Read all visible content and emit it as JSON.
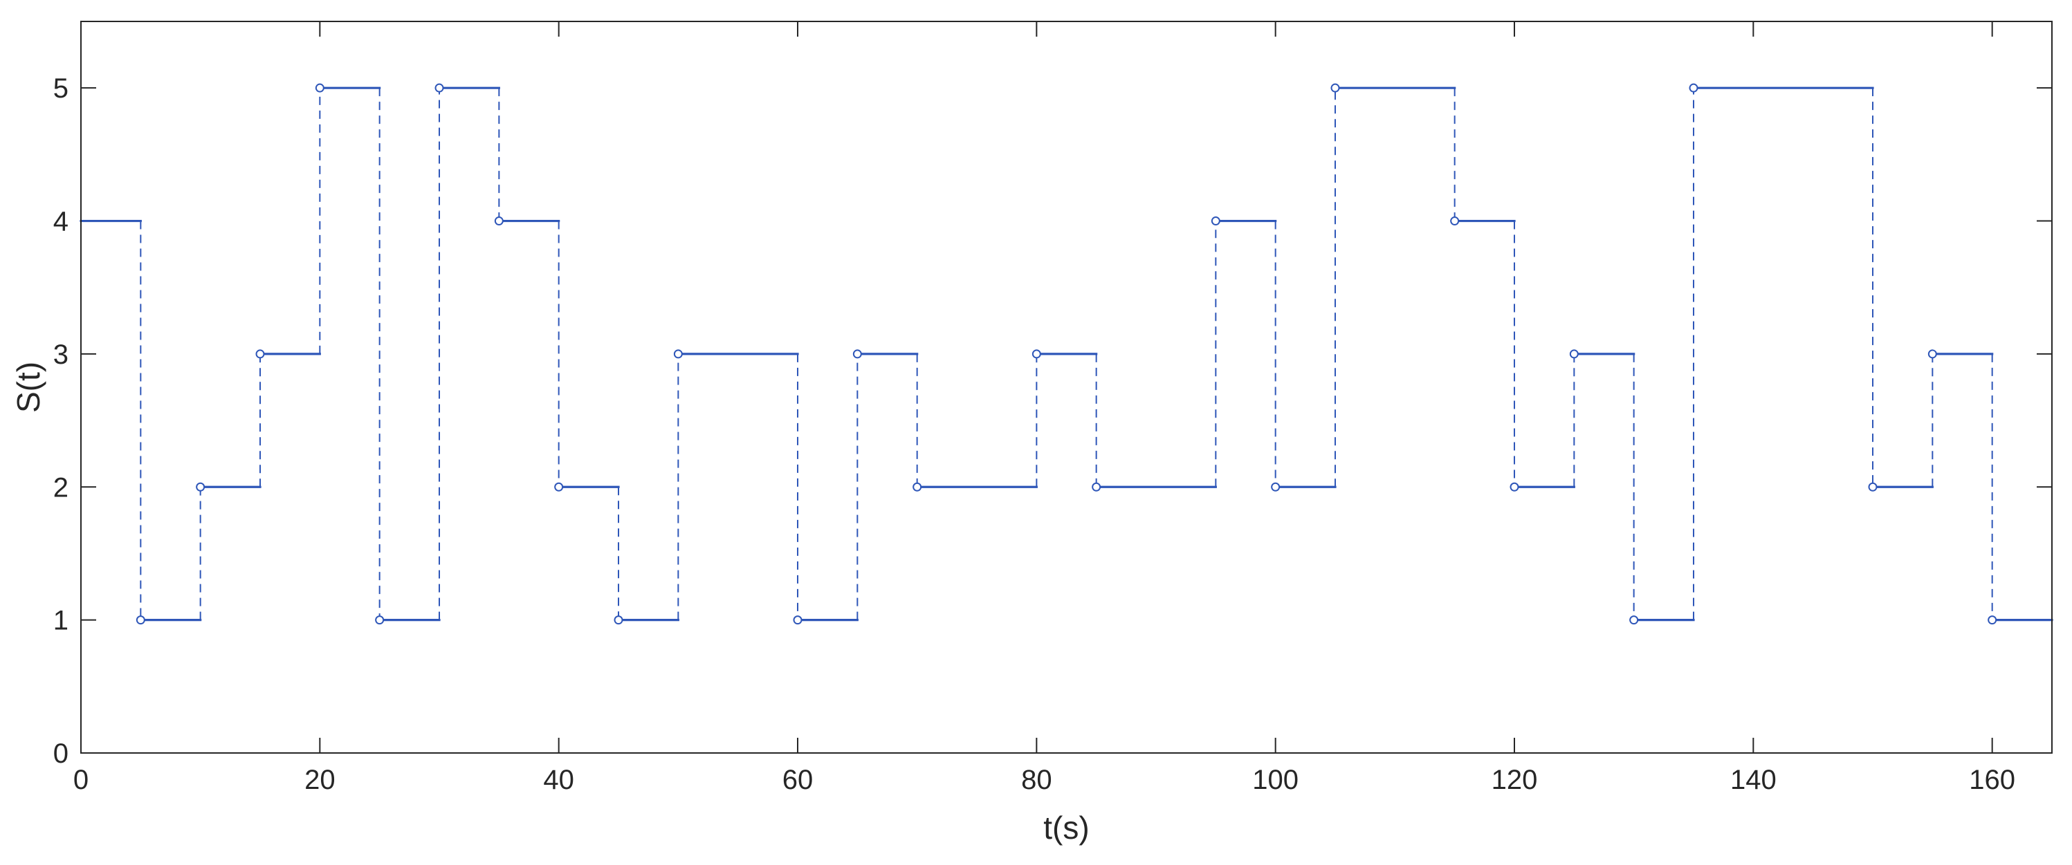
{
  "chart_data": {
    "type": "line",
    "style": "stairs",
    "xlabel": "t(s)",
    "ylabel": "S(t)",
    "xlim": [
      0,
      165
    ],
    "ylim": [
      0,
      5.5
    ],
    "xticks": [
      0,
      20,
      40,
      60,
      80,
      100,
      120,
      140,
      160
    ],
    "yticks": [
      0,
      1,
      2,
      3,
      4,
      5
    ],
    "grid": false,
    "line_color": "#2e56b8",
    "axis_color": "#262626",
    "steps": [
      {
        "t": 0,
        "s": 4
      },
      {
        "t": 5,
        "s": 1
      },
      {
        "t": 10,
        "s": 2
      },
      {
        "t": 15,
        "s": 3
      },
      {
        "t": 20,
        "s": 5
      },
      {
        "t": 25,
        "s": 1
      },
      {
        "t": 30,
        "s": 5
      },
      {
        "t": 35,
        "s": 4
      },
      {
        "t": 40,
        "s": 2
      },
      {
        "t": 45,
        "s": 1
      },
      {
        "t": 50,
        "s": 3
      },
      {
        "t": 60,
        "s": 1
      },
      {
        "t": 65,
        "s": 3
      },
      {
        "t": 70,
        "s": 2
      },
      {
        "t": 80,
        "s": 3
      },
      {
        "t": 85,
        "s": 2
      },
      {
        "t": 95,
        "s": 4
      },
      {
        "t": 100,
        "s": 2
      },
      {
        "t": 105,
        "s": 5
      },
      {
        "t": 115,
        "s": 4
      },
      {
        "t": 120,
        "s": 2
      },
      {
        "t": 125,
        "s": 3
      },
      {
        "t": 130,
        "s": 1
      },
      {
        "t": 135,
        "s": 5
      },
      {
        "t": 150,
        "s": 2
      },
      {
        "t": 155,
        "s": 3
      },
      {
        "t": 160,
        "s": 1
      }
    ],
    "end_t": 165
  }
}
